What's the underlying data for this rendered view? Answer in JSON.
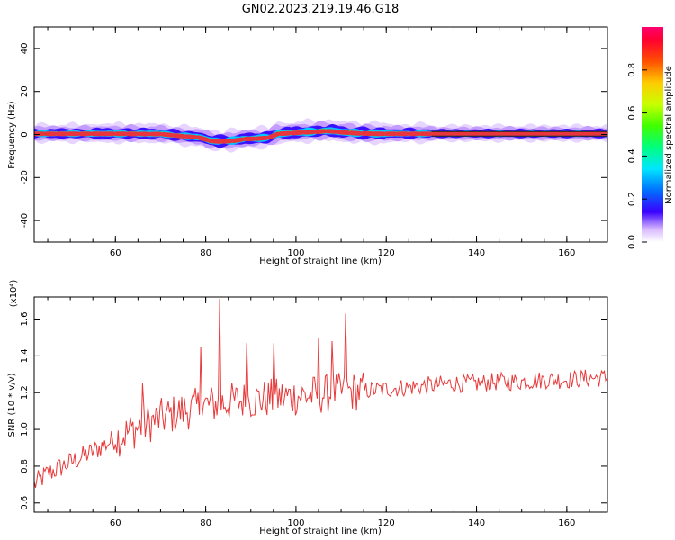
{
  "title": "GN02.2023.219.19.46.G18",
  "chart_data": [
    {
      "type": "heatmap",
      "xlabel": "Height of straight line (km)",
      "ylabel": "Frequency (Hz)",
      "xlim": [
        42,
        169
      ],
      "ylim": [
        -50,
        50
      ],
      "xticks": [
        "60",
        "80",
        "100",
        "120",
        "140",
        "160"
      ],
      "yticks": [
        "-40",
        "-20",
        "0",
        "20",
        "40"
      ],
      "colorbar": {
        "label": "Normalized spectral amplitude",
        "range": [
          0,
          1
        ],
        "ticks": [
          "0.0",
          "0.2",
          "0.4",
          "0.6",
          "0.8"
        ]
      },
      "ridge": {
        "height_km": [
          42,
          48,
          52,
          62,
          70,
          76,
          79,
          81,
          83,
          86,
          89,
          91,
          94,
          96,
          98,
          100,
          102,
          104,
          106,
          108,
          110,
          114,
          118,
          122,
          130,
          140,
          150,
          160,
          168
        ],
        "frequency_hz": [
          0.3,
          0.3,
          0.3,
          0.3,
          0.2,
          -1.0,
          -1.5,
          -3.0,
          -3.3,
          -3.0,
          -2.0,
          -2.0,
          -1.5,
          0.3,
          0.5,
          0.8,
          1.0,
          1.2,
          1.5,
          1.6,
          1.0,
          0.5,
          0.3,
          0.3,
          0.3,
          0.3,
          0.3,
          0.3,
          0.3
        ]
      }
    },
    {
      "type": "line",
      "xlabel": "Height of straight line (km)",
      "ylabel": "SNR (10 * v/v)",
      "y_scale_note": "(x10⁴)",
      "xlim": [
        42,
        169
      ],
      "ylim": [
        0.55,
        1.72
      ],
      "xticks": [
        "60",
        "80",
        "100",
        "120",
        "140",
        "160"
      ],
      "yticks": [
        "0.6",
        "0.8",
        "1.0",
        "1.2",
        "1.4",
        "1.6"
      ],
      "color": "#e8393a",
      "trend": {
        "x": [
          42,
          45,
          50,
          55,
          60,
          65,
          70,
          75,
          80,
          85,
          90,
          95,
          100,
          105,
          110,
          115,
          120,
          125,
          130,
          135,
          140,
          145,
          150,
          155,
          160,
          165,
          169
        ],
        "y": [
          0.7,
          0.76,
          0.82,
          0.88,
          0.95,
          1.01,
          1.06,
          1.1,
          1.13,
          1.15,
          1.16,
          1.17,
          1.18,
          1.19,
          1.2,
          1.21,
          1.22,
          1.23,
          1.24,
          1.25,
          1.25,
          1.26,
          1.26,
          1.27,
          1.27,
          1.28,
          1.28
        ]
      },
      "spikes": [
        {
          "x": 83,
          "y": 1.71
        },
        {
          "x": 111,
          "y": 1.63
        },
        {
          "x": 105,
          "y": 1.5
        },
        {
          "x": 95,
          "y": 1.47
        },
        {
          "x": 79,
          "y": 1.45
        },
        {
          "x": 66,
          "y": 1.25
        },
        {
          "x": 108,
          "y": 1.48
        },
        {
          "x": 89,
          "y": 1.47
        }
      ]
    }
  ]
}
